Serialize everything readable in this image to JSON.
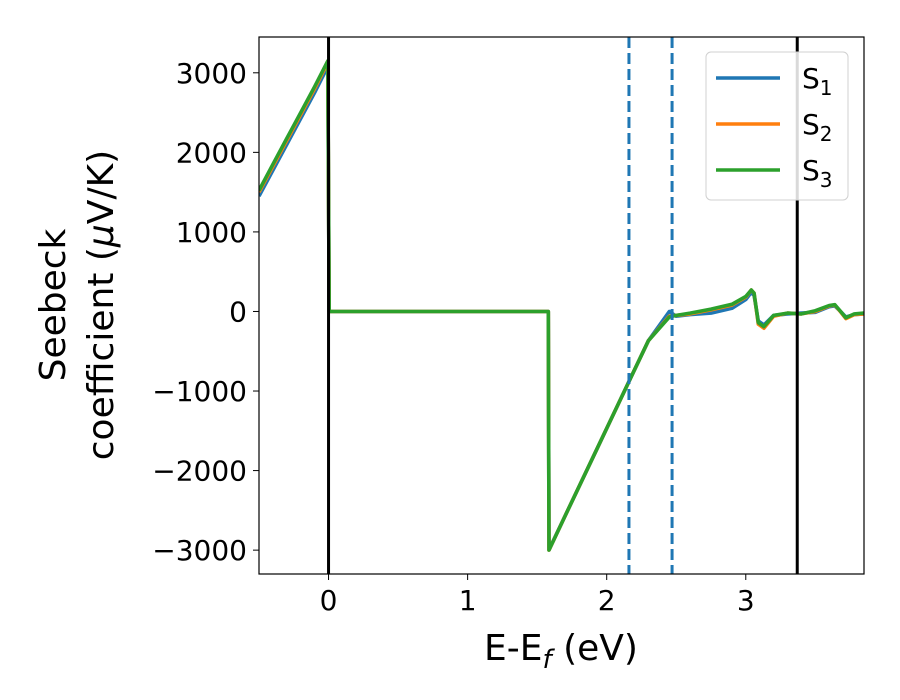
{
  "chart_data": {
    "type": "line",
    "xlabel": "E-E",
    "xlabel_sub": "f",
    "xlabel_unit": " (eV)",
    "ylabel_line1": "Seebeck",
    "ylabel_line2": "coefficient  (",
    "ylabel_mu": "μ",
    "ylabel_unit": "V/K)",
    "xlim": [
      -0.5,
      3.85
    ],
    "ylim": [
      -3300,
      3450
    ],
    "xticks": [
      0,
      1,
      2,
      3
    ],
    "xtick_labels": [
      "0",
      "1",
      "2",
      "3"
    ],
    "yticks": [
      3000,
      2000,
      1000,
      0,
      -1000,
      -2000,
      -3000
    ],
    "ytick_labels": [
      "3000",
      "2000",
      "1000",
      "0",
      "−1000",
      "−2000",
      "−3000"
    ],
    "legend_position": "top-right",
    "vlines_solid": [
      0.0,
      3.37
    ],
    "vlines_dashed": [
      2.16,
      2.47
    ],
    "series": [
      {
        "name": "S",
        "sub": "1",
        "color": "#1f77b4",
        "points": [
          [
            -0.5,
            1450
          ],
          [
            -0.4,
            1775
          ],
          [
            -0.3,
            2100
          ],
          [
            -0.2,
            2425
          ],
          [
            -0.1,
            2750
          ],
          [
            -0.005,
            3080
          ],
          [
            0.005,
            0
          ],
          [
            0.5,
            0
          ],
          [
            1.0,
            0
          ],
          [
            1.58,
            0
          ],
          [
            1.585,
            -2995
          ],
          [
            1.7,
            -2572
          ],
          [
            1.9,
            -1838
          ],
          [
            2.1,
            -1102
          ],
          [
            2.3,
            -368
          ],
          [
            2.45,
            0
          ],
          [
            2.5,
            -60
          ],
          [
            2.6,
            -40
          ],
          [
            2.75,
            -20
          ],
          [
            2.9,
            40
          ],
          [
            3.0,
            150
          ],
          [
            3.04,
            240
          ],
          [
            3.06,
            200
          ],
          [
            3.09,
            -120
          ],
          [
            3.13,
            -170
          ],
          [
            3.2,
            -50
          ],
          [
            3.3,
            -30
          ],
          [
            3.4,
            -20
          ],
          [
            3.5,
            -10
          ],
          [
            3.6,
            60
          ],
          [
            3.64,
            70
          ],
          [
            3.67,
            20
          ],
          [
            3.72,
            -70
          ],
          [
            3.78,
            -40
          ],
          [
            3.85,
            -30
          ]
        ]
      },
      {
        "name": "S",
        "sub": "2",
        "color": "#ff7f0e",
        "points": [
          [
            -0.5,
            1500
          ],
          [
            -0.4,
            1825
          ],
          [
            -0.3,
            2150
          ],
          [
            -0.2,
            2475
          ],
          [
            -0.1,
            2800
          ],
          [
            -0.005,
            3130
          ],
          [
            0.005,
            0
          ],
          [
            0.5,
            0
          ],
          [
            1.0,
            0
          ],
          [
            1.58,
            0
          ],
          [
            1.585,
            -3000
          ],
          [
            1.7,
            -2572
          ],
          [
            1.9,
            -1838
          ],
          [
            2.1,
            -1102
          ],
          [
            2.3,
            -368
          ],
          [
            2.45,
            -60
          ],
          [
            2.5,
            -50
          ],
          [
            2.6,
            -30
          ],
          [
            2.75,
            20
          ],
          [
            2.9,
            80
          ],
          [
            3.0,
            180
          ],
          [
            3.04,
            270
          ],
          [
            3.06,
            230
          ],
          [
            3.09,
            -160
          ],
          [
            3.13,
            -210
          ],
          [
            3.2,
            -60
          ],
          [
            3.3,
            -20
          ],
          [
            3.4,
            -30
          ],
          [
            3.5,
            0
          ],
          [
            3.6,
            70
          ],
          [
            3.64,
            80
          ],
          [
            3.67,
            20
          ],
          [
            3.72,
            -90
          ],
          [
            3.78,
            -40
          ],
          [
            3.85,
            -30
          ]
        ]
      },
      {
        "name": "S",
        "sub": "3",
        "color": "#2ca02c",
        "points": [
          [
            -0.5,
            1520
          ],
          [
            -0.4,
            1850
          ],
          [
            -0.3,
            2175
          ],
          [
            -0.2,
            2500
          ],
          [
            -0.1,
            2825
          ],
          [
            -0.005,
            3150
          ],
          [
            0.005,
            0
          ],
          [
            0.5,
            0
          ],
          [
            1.0,
            0
          ],
          [
            1.58,
            0
          ],
          [
            1.585,
            -3000
          ],
          [
            1.7,
            -2572
          ],
          [
            1.9,
            -1838
          ],
          [
            2.1,
            -1102
          ],
          [
            2.3,
            -368
          ],
          [
            2.45,
            -70
          ],
          [
            2.5,
            -50
          ],
          [
            2.6,
            -20
          ],
          [
            2.75,
            30
          ],
          [
            2.9,
            90
          ],
          [
            3.0,
            190
          ],
          [
            3.04,
            270
          ],
          [
            3.06,
            230
          ],
          [
            3.09,
            -140
          ],
          [
            3.13,
            -190
          ],
          [
            3.2,
            -50
          ],
          [
            3.3,
            -20
          ],
          [
            3.4,
            -30
          ],
          [
            3.5,
            10
          ],
          [
            3.6,
            75
          ],
          [
            3.64,
            85
          ],
          [
            3.67,
            25
          ],
          [
            3.72,
            -80
          ],
          [
            3.78,
            -30
          ],
          [
            3.85,
            -20
          ]
        ]
      }
    ]
  }
}
